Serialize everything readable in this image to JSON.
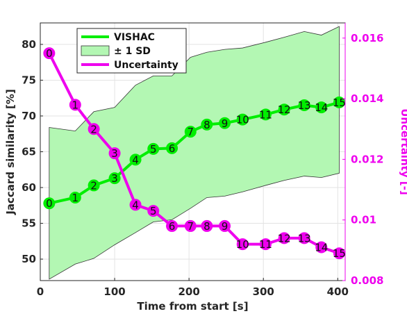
{
  "chart_data": {
    "type": "line",
    "xlabel": "Time from start [s]",
    "ylabel_left": "Jaccard similarity [%]",
    "ylabel_right": "Uncertainty [-]",
    "xlim": [
      0,
      410
    ],
    "ylim_left": [
      47,
      83
    ],
    "ylim_right": [
      0.008,
      0.0165
    ],
    "x_ticks": [
      0,
      100,
      200,
      300,
      400
    ],
    "y_ticks_left": [
      50,
      55,
      60,
      65,
      70,
      75,
      80
    ],
    "y_ticks_right": [
      0.008,
      0.01,
      0.012,
      0.014,
      0.016
    ],
    "y_tick_labels_right": [
      "0.008",
      "0.01",
      "0.012",
      "0.014",
      "0.016"
    ],
    "grid": true,
    "legend_position": "top-left",
    "legend": [
      {
        "label": "VISHAC",
        "kind": "line",
        "color": "#00ee00"
      },
      {
        "label": "± 1 SD",
        "kind": "patch",
        "color": "#b3f7b3"
      },
      {
        "label": "Uncertainty",
        "kind": "line",
        "color": "#ee00ee"
      }
    ],
    "points_x": [
      12,
      47,
      72,
      100,
      128,
      152,
      177,
      202,
      224,
      248,
      272,
      303,
      328,
      355,
      378,
      402
    ],
    "point_labels": [
      "0",
      "1",
      "2",
      "3",
      "4",
      "5",
      "6",
      "7",
      "8",
      "9",
      "10",
      "11",
      "12",
      "13",
      "14",
      "15"
    ],
    "series": [
      {
        "name": "VISHAC",
        "axis": "left",
        "color": "#00ee00",
        "values": [
          57.8,
          58.6,
          60.3,
          61.3,
          63.9,
          65.4,
          65.5,
          67.8,
          68.8,
          69.0,
          69.5,
          70.2,
          70.9,
          71.5,
          71.2,
          71.9
        ]
      },
      {
        "name": "Uncertainty",
        "axis": "right",
        "color": "#ee00ee",
        "values": [
          0.0155,
          0.0138,
          0.013,
          0.0122,
          0.0105,
          0.0103,
          0.0098,
          0.0098,
          0.0098,
          0.0098,
          0.0092,
          0.0092,
          0.0094,
          0.0094,
          0.0091,
          0.0089
        ]
      }
    ],
    "band": {
      "name": "± 1 SD",
      "axis": "left",
      "color": "#b3f7b3",
      "x": [
        12,
        47,
        72,
        100,
        128,
        152,
        177,
        202,
        224,
        248,
        272,
        303,
        328,
        355,
        378,
        402
      ],
      "upper": [
        68.4,
        67.9,
        70.6,
        71.2,
        74.3,
        75.6,
        75.6,
        78.2,
        78.9,
        79.3,
        79.5,
        80.3,
        81.0,
        81.8,
        81.3,
        82.5
      ],
      "lower": [
        47.2,
        49.3,
        50.1,
        52.0,
        53.7,
        55.2,
        55.5,
        57.1,
        58.6,
        58.8,
        59.4,
        60.3,
        61.0,
        61.6,
        61.4,
        62.0
      ]
    }
  }
}
